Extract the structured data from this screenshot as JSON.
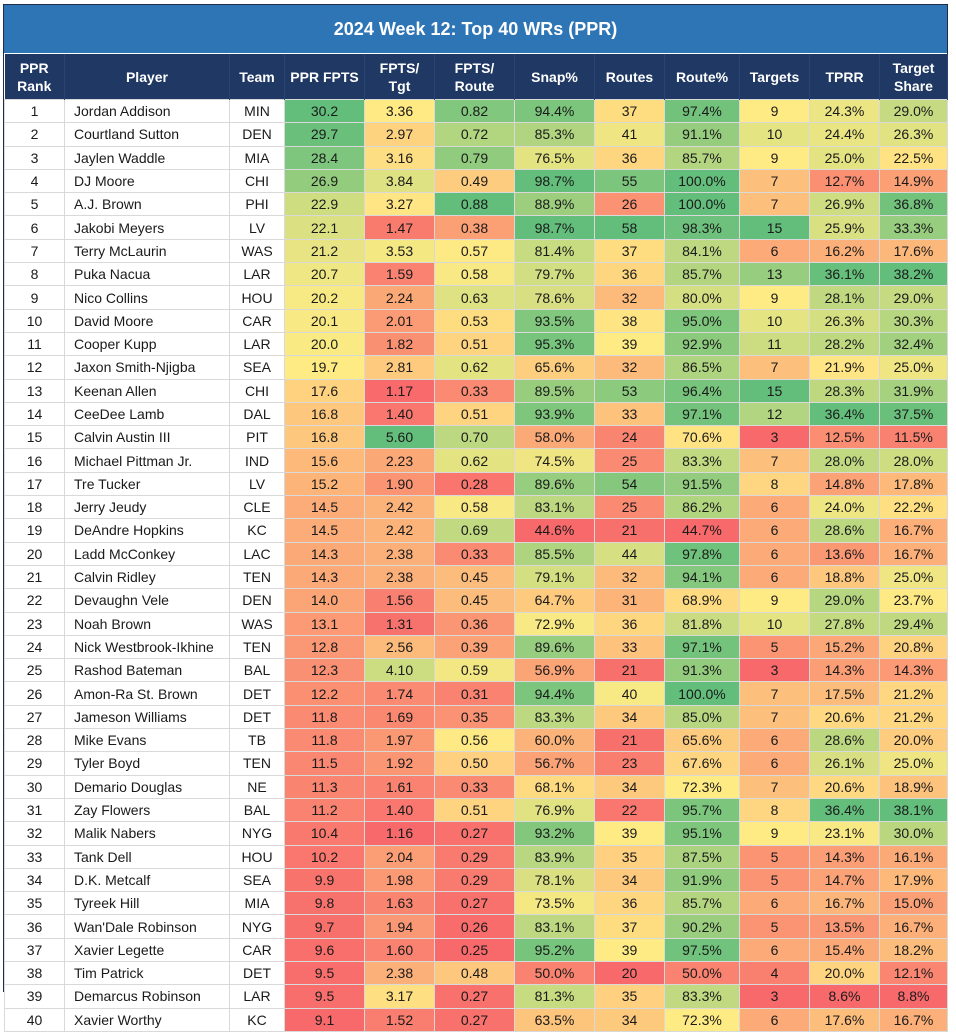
{
  "title": "2024 Week 12:  Top 40 WRs (PPR)",
  "columns": [
    "PPR Rank",
    "Player",
    "Team",
    "PPR FPTS",
    "FPTS/ Tgt",
    "FPTS/ Route",
    "Snap%",
    "Routes",
    "Route%",
    "Targets",
    "TPRR",
    "Target Share"
  ],
  "colors": {
    "header_bg": "#1f3864",
    "title_bg": "#2e75b6",
    "scale_low": "#f8696b",
    "scale_mid": "#ffeb84",
    "scale_high": "#63be7b"
  },
  "chart_data": {
    "type": "table",
    "title": "2024 Week 12:  Top 40 WRs (PPR)",
    "conditional_format": "red-yellow-green color scale on numeric columns",
    "rows": [
      [
        "1",
        "Jordan Addison",
        "MIN",
        "30.2",
        "3.36",
        "0.82",
        "94.4%",
        "37",
        "97.4%",
        "9",
        "24.3%",
        "29.0%"
      ],
      [
        "2",
        "Courtland Sutton",
        "DEN",
        "29.7",
        "2.97",
        "0.72",
        "85.3%",
        "41",
        "91.1%",
        "10",
        "24.4%",
        "26.3%"
      ],
      [
        "3",
        "Jaylen Waddle",
        "MIA",
        "28.4",
        "3.16",
        "0.79",
        "76.5%",
        "36",
        "85.7%",
        "9",
        "25.0%",
        "22.5%"
      ],
      [
        "4",
        "DJ Moore",
        "CHI",
        "26.9",
        "3.84",
        "0.49",
        "98.7%",
        "55",
        "100.0%",
        "7",
        "12.7%",
        "14.9%"
      ],
      [
        "5",
        "A.J. Brown",
        "PHI",
        "22.9",
        "3.27",
        "0.88",
        "88.9%",
        "26",
        "100.0%",
        "7",
        "26.9%",
        "36.8%"
      ],
      [
        "6",
        "Jakobi Meyers",
        "LV",
        "22.1",
        "1.47",
        "0.38",
        "98.7%",
        "58",
        "98.3%",
        "15",
        "25.9%",
        "33.3%"
      ],
      [
        "7",
        "Terry McLaurin",
        "WAS",
        "21.2",
        "3.53",
        "0.57",
        "81.4%",
        "37",
        "84.1%",
        "6",
        "16.2%",
        "17.6%"
      ],
      [
        "8",
        "Puka Nacua",
        "LAR",
        "20.7",
        "1.59",
        "0.58",
        "79.7%",
        "36",
        "85.7%",
        "13",
        "36.1%",
        "38.2%"
      ],
      [
        "9",
        "Nico Collins",
        "HOU",
        "20.2",
        "2.24",
        "0.63",
        "78.6%",
        "32",
        "80.0%",
        "9",
        "28.1%",
        "29.0%"
      ],
      [
        "10",
        "David Moore",
        "CAR",
        "20.1",
        "2.01",
        "0.53",
        "93.5%",
        "38",
        "95.0%",
        "10",
        "26.3%",
        "30.3%"
      ],
      [
        "11",
        "Cooper Kupp",
        "LAR",
        "20.0",
        "1.82",
        "0.51",
        "95.3%",
        "39",
        "92.9%",
        "11",
        "28.2%",
        "32.4%"
      ],
      [
        "12",
        "Jaxon Smith-Njigba",
        "SEA",
        "19.7",
        "2.81",
        "0.62",
        "65.6%",
        "32",
        "86.5%",
        "7",
        "21.9%",
        "25.0%"
      ],
      [
        "13",
        "Keenan Allen",
        "CHI",
        "17.6",
        "1.17",
        "0.33",
        "89.5%",
        "53",
        "96.4%",
        "15",
        "28.3%",
        "31.9%"
      ],
      [
        "14",
        "CeeDee Lamb",
        "DAL",
        "16.8",
        "1.40",
        "0.51",
        "93.9%",
        "33",
        "97.1%",
        "12",
        "36.4%",
        "37.5%"
      ],
      [
        "15",
        "Calvin Austin III",
        "PIT",
        "16.8",
        "5.60",
        "0.70",
        "58.0%",
        "24",
        "70.6%",
        "3",
        "12.5%",
        "11.5%"
      ],
      [
        "16",
        "Michael Pittman Jr.",
        "IND",
        "15.6",
        "2.23",
        "0.62",
        "74.5%",
        "25",
        "83.3%",
        "7",
        "28.0%",
        "28.0%"
      ],
      [
        "17",
        "Tre Tucker",
        "LV",
        "15.2",
        "1.90",
        "0.28",
        "89.6%",
        "54",
        "91.5%",
        "8",
        "14.8%",
        "17.8%"
      ],
      [
        "18",
        "Jerry Jeudy",
        "CLE",
        "14.5",
        "2.42",
        "0.58",
        "83.1%",
        "25",
        "86.2%",
        "6",
        "24.0%",
        "22.2%"
      ],
      [
        "19",
        "DeAndre Hopkins",
        "KC",
        "14.5",
        "2.42",
        "0.69",
        "44.6%",
        "21",
        "44.7%",
        "6",
        "28.6%",
        "16.7%"
      ],
      [
        "20",
        "Ladd McConkey",
        "LAC",
        "14.3",
        "2.38",
        "0.33",
        "85.5%",
        "44",
        "97.8%",
        "6",
        "13.6%",
        "16.7%"
      ],
      [
        "21",
        "Calvin Ridley",
        "TEN",
        "14.3",
        "2.38",
        "0.45",
        "79.1%",
        "32",
        "94.1%",
        "6",
        "18.8%",
        "25.0%"
      ],
      [
        "22",
        "Devaughn Vele",
        "DEN",
        "14.0",
        "1.56",
        "0.45",
        "64.7%",
        "31",
        "68.9%",
        "9",
        "29.0%",
        "23.7%"
      ],
      [
        "23",
        "Noah Brown",
        "WAS",
        "13.1",
        "1.31",
        "0.36",
        "72.9%",
        "36",
        "81.8%",
        "10",
        "27.8%",
        "29.4%"
      ],
      [
        "24",
        "Nick Westbrook-Ikhine",
        "TEN",
        "12.8",
        "2.56",
        "0.39",
        "89.6%",
        "33",
        "97.1%",
        "5",
        "15.2%",
        "20.8%"
      ],
      [
        "25",
        "Rashod Bateman",
        "BAL",
        "12.3",
        "4.10",
        "0.59",
        "56.9%",
        "21",
        "91.3%",
        "3",
        "14.3%",
        "14.3%"
      ],
      [
        "26",
        "Amon-Ra St. Brown",
        "DET",
        "12.2",
        "1.74",
        "0.31",
        "94.4%",
        "40",
        "100.0%",
        "7",
        "17.5%",
        "21.2%"
      ],
      [
        "27",
        "Jameson Williams",
        "DET",
        "11.8",
        "1.69",
        "0.35",
        "83.3%",
        "34",
        "85.0%",
        "7",
        "20.6%",
        "21.2%"
      ],
      [
        "28",
        "Mike Evans",
        "TB",
        "11.8",
        "1.97",
        "0.56",
        "60.0%",
        "21",
        "65.6%",
        "6",
        "28.6%",
        "20.0%"
      ],
      [
        "29",
        "Tyler Boyd",
        "TEN",
        "11.5",
        "1.92",
        "0.50",
        "56.7%",
        "23",
        "67.6%",
        "6",
        "26.1%",
        "25.0%"
      ],
      [
        "30",
        "Demario Douglas",
        "NE",
        "11.3",
        "1.61",
        "0.33",
        "68.1%",
        "34",
        "72.3%",
        "7",
        "20.6%",
        "18.9%"
      ],
      [
        "31",
        "Zay Flowers",
        "BAL",
        "11.2",
        "1.40",
        "0.51",
        "76.9%",
        "22",
        "95.7%",
        "8",
        "36.4%",
        "38.1%"
      ],
      [
        "32",
        "Malik Nabers",
        "NYG",
        "10.4",
        "1.16",
        "0.27",
        "93.2%",
        "39",
        "95.1%",
        "9",
        "23.1%",
        "30.0%"
      ],
      [
        "33",
        "Tank Dell",
        "HOU",
        "10.2",
        "2.04",
        "0.29",
        "83.9%",
        "35",
        "87.5%",
        "5",
        "14.3%",
        "16.1%"
      ],
      [
        "34",
        "D.K. Metcalf",
        "SEA",
        "9.9",
        "1.98",
        "0.29",
        "78.1%",
        "34",
        "91.9%",
        "5",
        "14.7%",
        "17.9%"
      ],
      [
        "35",
        "Tyreek Hill",
        "MIA",
        "9.8",
        "1.63",
        "0.27",
        "73.5%",
        "36",
        "85.7%",
        "6",
        "16.7%",
        "15.0%"
      ],
      [
        "36",
        "Wan'Dale Robinson",
        "NYG",
        "9.7",
        "1.94",
        "0.26",
        "83.1%",
        "37",
        "90.2%",
        "5",
        "13.5%",
        "16.7%"
      ],
      [
        "37",
        "Xavier Legette",
        "CAR",
        "9.6",
        "1.60",
        "0.25",
        "95.2%",
        "39",
        "97.5%",
        "6",
        "15.4%",
        "18.2%"
      ],
      [
        "38",
        "Tim Patrick",
        "DET",
        "9.5",
        "2.38",
        "0.48",
        "50.0%",
        "20",
        "50.0%",
        "4",
        "20.0%",
        "12.1%"
      ],
      [
        "39",
        "Demarcus Robinson",
        "LAR",
        "9.5",
        "3.17",
        "0.27",
        "81.3%",
        "35",
        "83.3%",
        "3",
        "8.6%",
        "8.8%"
      ],
      [
        "40",
        "Xavier Worthy",
        "KC",
        "9.1",
        "1.52",
        "0.27",
        "63.5%",
        "34",
        "72.3%",
        "6",
        "17.6%",
        "16.7%"
      ]
    ]
  }
}
